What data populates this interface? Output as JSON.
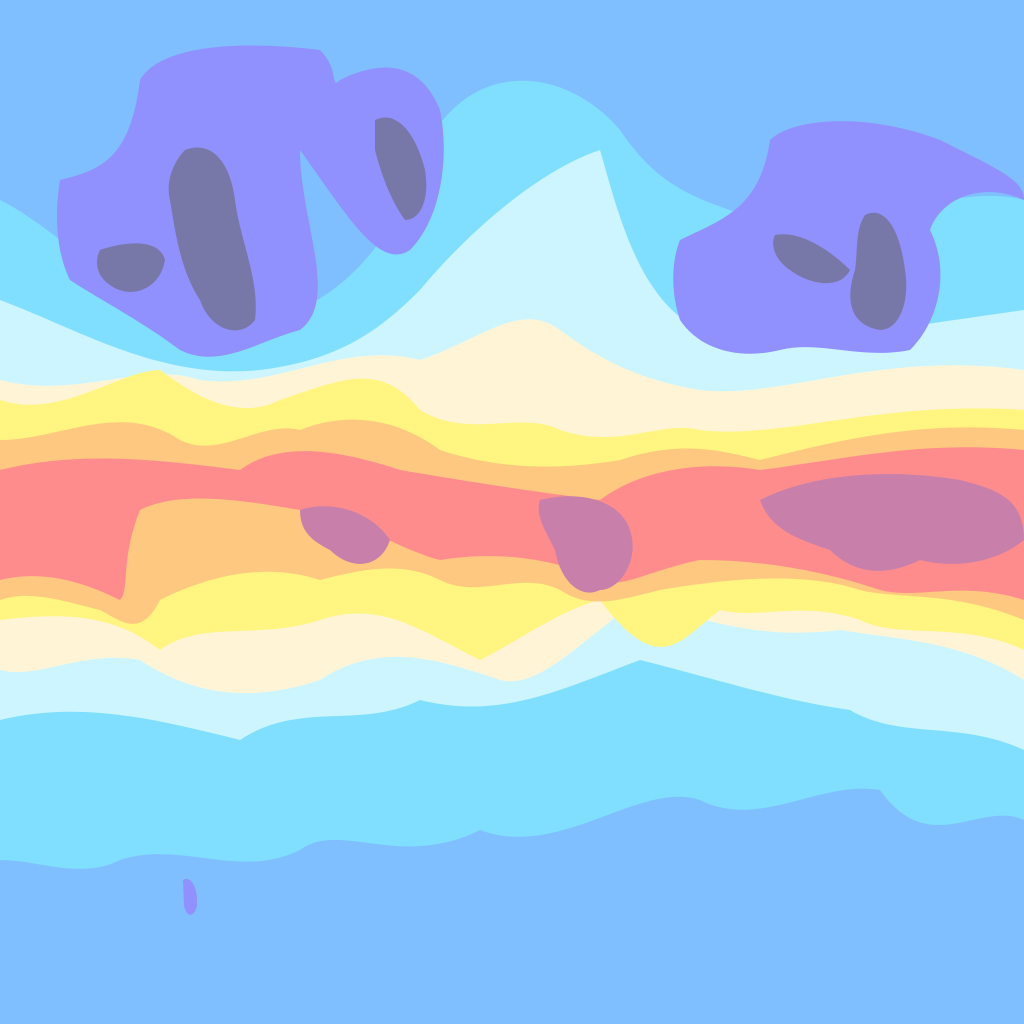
{
  "map": {
    "type": "global temperature field (equirectangular)",
    "palette": {
      "coldest": "#7878a8",
      "very_cold": "#9090ff",
      "cold": "#80bfff",
      "cool": "#80dfff",
      "mild_cool": "#ccf5ff",
      "mild": "#fff5d6",
      "warm": "#fff580",
      "warmer": "#ffc880",
      "hot": "#ff8c8c",
      "hottest": "#c880aa",
      "contour": "#000060"
    }
  }
}
